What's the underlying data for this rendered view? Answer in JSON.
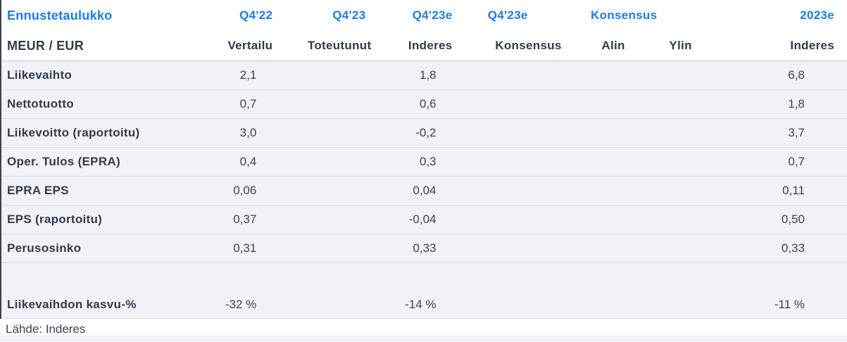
{
  "table": {
    "title_row": {
      "label": "Ennustetaulukko",
      "q422": "Q4'22",
      "q423": "Q4'23",
      "q423e_inderes": "Q4'23e",
      "q423e_konsensus": "Q4'23e",
      "konsensus_group": "Konsensus",
      "y2023e": "2023e"
    },
    "subtitle_row": {
      "label": "MEUR / EUR",
      "q422": "Vertailu",
      "q423": "Toteutunut",
      "q423e_inderes": "Inderes",
      "q423e_konsensus": "Konsensus",
      "alin": "Alin",
      "ylin": "Ylin",
      "y2023e": "Inderes"
    },
    "rows": [
      {
        "label": "Liikevaihto",
        "q422": "2,1",
        "q423": "",
        "q423e_inderes": "1,8",
        "q423e_konsensus": "",
        "alin": "",
        "ylin": "",
        "y2023e": "6,8"
      },
      {
        "label": "Nettotuotto",
        "q422": "0,7",
        "q423": "",
        "q423e_inderes": "0,6",
        "q423e_konsensus": "",
        "alin": "",
        "ylin": "",
        "y2023e": "1,8"
      },
      {
        "label": "Liikevoitto (raportoitu)",
        "q422": "3,0",
        "q423": "",
        "q423e_inderes": "-0,2",
        "q423e_konsensus": "",
        "alin": "",
        "ylin": "",
        "y2023e": "3,7"
      },
      {
        "label": "Oper. Tulos (EPRA)",
        "q422": "0,4",
        "q423": "",
        "q423e_inderes": "0,3",
        "q423e_konsensus": "",
        "alin": "",
        "ylin": "",
        "y2023e": "0,7"
      },
      {
        "label": "EPRA EPS",
        "q422": "0,06",
        "q423": "",
        "q423e_inderes": "0,04",
        "q423e_konsensus": "",
        "alin": "",
        "ylin": "",
        "y2023e": "0,11"
      },
      {
        "label": "EPS (raportoitu)",
        "q422": "0,37",
        "q423": "",
        "q423e_inderes": "-0,04",
        "q423e_konsensus": "",
        "alin": "",
        "ylin": "",
        "y2023e": "0,50"
      },
      {
        "label": "Perusosinko",
        "q422": "0,31",
        "q423": "",
        "q423e_inderes": "0,33",
        "q423e_konsensus": "",
        "alin": "",
        "ylin": "",
        "y2023e": "0,33"
      }
    ],
    "growth_row": {
      "label": "Liikevaihdon kasvu-%",
      "q422": "-32 %",
      "q423": "",
      "q423e_inderes": "-14 %",
      "q423e_konsensus": "",
      "alin": "",
      "ylin": "",
      "y2023e": "-11 %"
    },
    "source": "Lähde: Inderes"
  },
  "colors": {
    "accent_blue": "#1b7ce8",
    "heading_text": "#323a4b",
    "value_text": "#3a4152",
    "row_background": "#f1f2f7",
    "row_separator": "#d9dbe1",
    "header_separator": "#c7c9d1",
    "bottom_strip": "#f2f3f8"
  }
}
